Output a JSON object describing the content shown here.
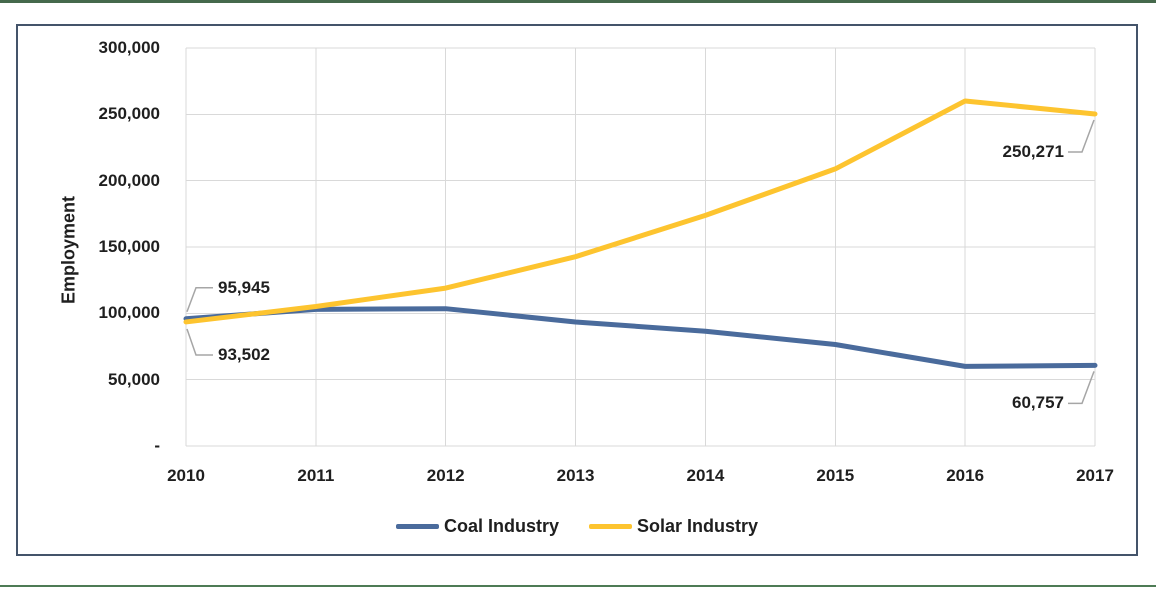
{
  "page": {
    "top_rule_color": "#45694c",
    "bottom_rule_color": "#4e7b55",
    "frame_border_color": "#44546a",
    "background_color": "#ffffff"
  },
  "chart_data": {
    "type": "line",
    "title": "",
    "xlabel": "",
    "ylabel": "Employment",
    "x": [
      2010,
      2011,
      2012,
      2013,
      2014,
      2015,
      2016,
      2017
    ],
    "x_tick_labels": [
      "2010",
      "2011",
      "2012",
      "2013",
      "2014",
      "2015",
      "2016",
      "2017"
    ],
    "ylim": [
      0,
      300000
    ],
    "y_ticks": [
      {
        "value": 300000,
        "label": "300,000"
      },
      {
        "value": 250000,
        "label": "250,000"
      },
      {
        "value": 200000,
        "label": "200,000"
      },
      {
        "value": 150000,
        "label": "150,000"
      },
      {
        "value": 100000,
        "label": "100,000"
      },
      {
        "value": 50000,
        "label": "50,000"
      },
      {
        "value": 0,
        "label": "-"
      }
    ],
    "grid": true,
    "legend_position": "bottom-center",
    "series": [
      {
        "name": "Coal Industry",
        "color": "#4a6b9c",
        "values": [
          95945,
          103000,
          103500,
          93500,
          86500,
          76500,
          60000,
          60757
        ]
      },
      {
        "name": "Solar Industry",
        "color": "#fdc42f",
        "values": [
          93502,
          105145,
          119016,
          142698,
          173807,
          208859,
          260077,
          250271
        ]
      }
    ],
    "annotations": [
      {
        "series": "Coal Industry",
        "year": 2010,
        "label": "95,945",
        "placement": "left-above"
      },
      {
        "series": "Solar Industry",
        "year": 2010,
        "label": "93,502",
        "placement": "left-below"
      },
      {
        "series": "Solar Industry",
        "year": 2017,
        "label": "250,271",
        "placement": "right-below"
      },
      {
        "series": "Coal Industry",
        "year": 2017,
        "label": "60,757",
        "placement": "right-below"
      }
    ],
    "colors": {
      "gridline": "#d9d9d9",
      "leader_line": "#a6a6a6",
      "text": "#1f1f1f"
    }
  }
}
